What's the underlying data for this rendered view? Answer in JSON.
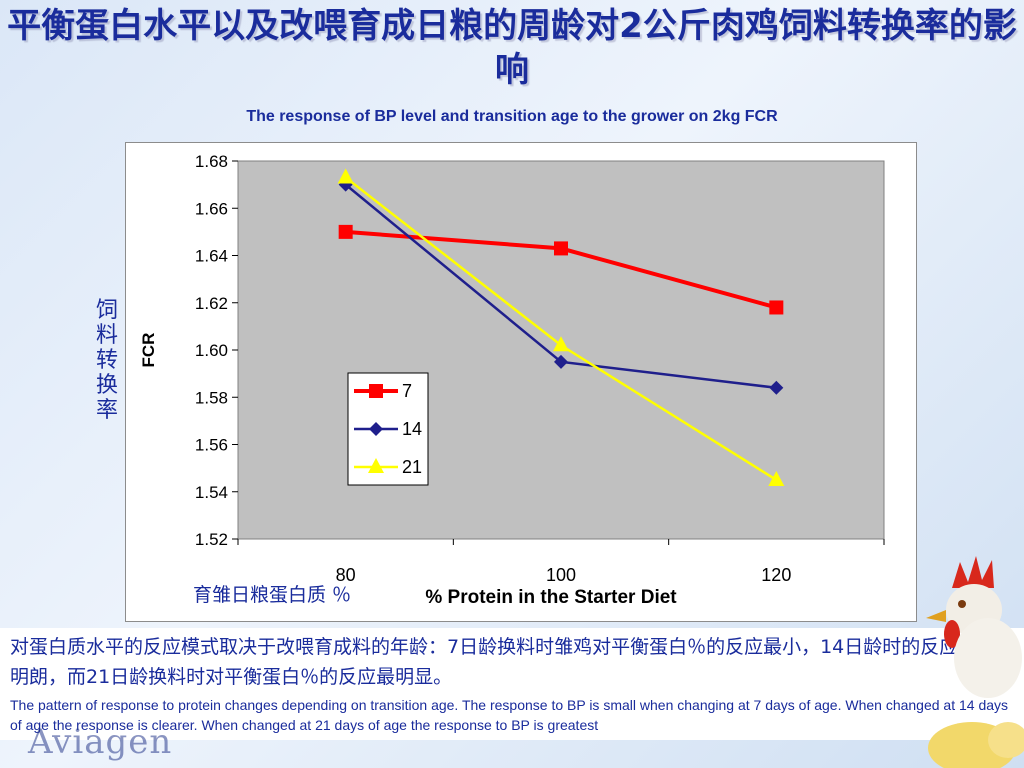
{
  "header": {
    "title_cn": "平衡蛋白水平以及改喂育成日粮的周龄对2公斤肉鸡饲料转换率的影响",
    "title_en": "The response of BP level and transition age to the grower on 2kg FCR"
  },
  "side_label_cn": "饲料转换率",
  "x_label_cn": "育雏日粮蛋白质 ％",
  "chart_data": {
    "type": "line",
    "ylabel": "FCR",
    "xlabel": "% Protein in the Starter Diet",
    "categories": [
      "80",
      "100",
      "120"
    ],
    "ylim": [
      1.52,
      1.68
    ],
    "yticks": [
      "1.68",
      "1.66",
      "1.64",
      "1.62",
      "1.60",
      "1.58",
      "1.56",
      "1.54",
      "1.52"
    ],
    "grid": false,
    "legend_position": "bottom-left",
    "series": [
      {
        "name": "7",
        "color": "#ff0000",
        "marker": "square",
        "values": [
          1.65,
          1.643,
          1.618
        ]
      },
      {
        "name": "14",
        "color": "#1f1f8c",
        "marker": "diamond",
        "values": [
          1.67,
          1.595,
          1.584
        ]
      },
      {
        "name": "21",
        "color": "#ffff00",
        "marker": "triangle",
        "values": [
          1.673,
          1.602,
          1.545
        ]
      }
    ]
  },
  "description": {
    "cn": "对蛋白质水平的反应模式取决于改喂育成料的年龄：7日龄换料时雏鸡对平衡蛋白％的反应最小，14日龄时的反应比较明朗，而21日龄换料时对平衡蛋白％的反应最明显。",
    "en": "The pattern of response to protein changes depending on transition age. The response to BP is small when changing at 7 days of age. When changed at 14 days of age the response is clearer. When changed at 21 days of age the response to BP is greatest"
  },
  "logo_text": "Aviagen"
}
